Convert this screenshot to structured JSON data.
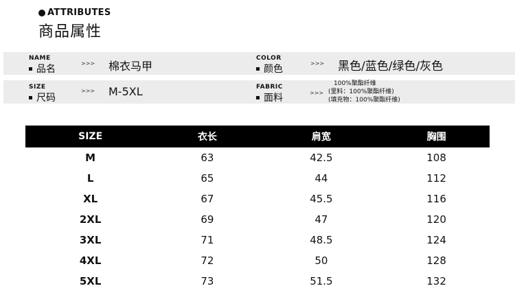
{
  "header": {
    "title_en": "ATTRIBUTES",
    "title_cn": "商品属性"
  },
  "attributes": [
    {
      "en": "NAME",
      "cn": "品名",
      "arrow": ">>>",
      "value": "棉衣马甲"
    },
    {
      "en": "COLOR",
      "cn": "颜色",
      "arrow": ">>>",
      "value": "黑色/蓝色/绿色/灰色"
    },
    {
      "en": "SIZE",
      "cn": "尺码",
      "arrow": ">>>",
      "value": "M-5XL"
    },
    {
      "en": "FABRIC",
      "cn": "面料",
      "arrow": ">>>",
      "value": [
        "100%聚酯纤维",
        "(里料：100%聚酯纤维)",
        "(填充物：100%聚酯纤维)"
      ]
    }
  ],
  "size_table": {
    "headers": [
      "SIZE",
      "衣长",
      "肩宽",
      "胸围"
    ],
    "rows": [
      [
        "M",
        "63",
        "42.5",
        "108"
      ],
      [
        "L",
        "65",
        "44",
        "112"
      ],
      [
        "XL",
        "67",
        "45.5",
        "116"
      ],
      [
        "2XL",
        "69",
        "47",
        "120"
      ],
      [
        "3XL",
        "71",
        "48.5",
        "124"
      ],
      [
        "4XL",
        "72",
        "50",
        "128"
      ],
      [
        "5XL",
        "73",
        "51.5",
        "132"
      ]
    ]
  }
}
